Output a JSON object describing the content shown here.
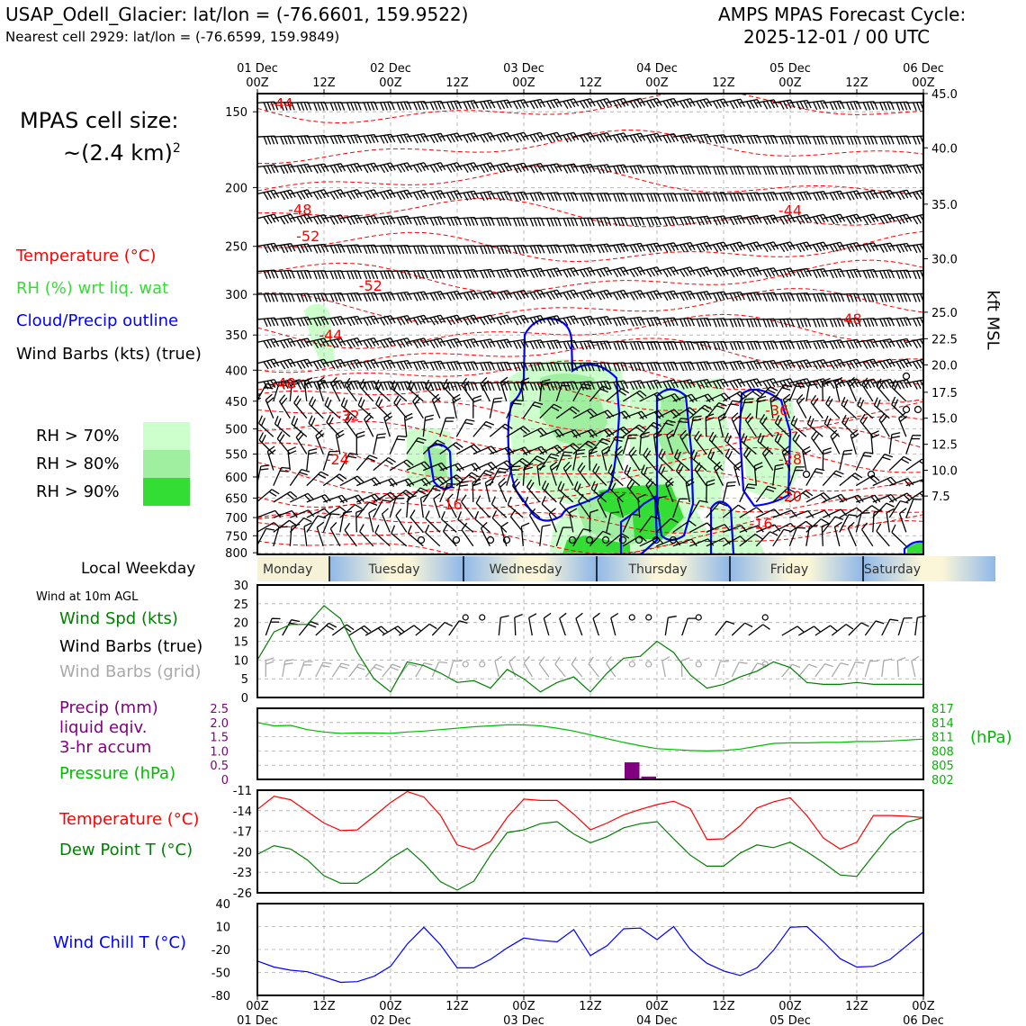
{
  "header": {
    "station_line": "USAP_Odell_Glacier: lat/lon = (-76.6601, 159.9522)",
    "nearest_line": "Nearest cell 2929: lat/lon = (-76.6599, 159.9849)",
    "cycle_line1": "AMPS MPAS Forecast Cycle:",
    "cycle_line2": "2025-12-01 / 00 UTC"
  },
  "colors": {
    "temperature": "#ff0000",
    "rh_label": "#33dd33",
    "cloud": "#0000ff",
    "wind_speed": "#008000",
    "dew_point": "#008000",
    "pressure": "#00bb00",
    "precip": "#800080",
    "wind_chill": "#0000ff",
    "grid_barbs": "#aaaaaa",
    "rh70": "#ccffcc",
    "rh80": "#a0eea0",
    "rh90": "#33dd33"
  },
  "time_axis": {
    "top_major": [
      "01 Dec\n00Z",
      "12Z",
      "02 Dec\n00Z",
      "12Z",
      "03 Dec\n00Z",
      "12Z",
      "04 Dec\n00Z",
      "12Z",
      "05 Dec\n00Z",
      "12Z",
      "06 Dec\n00Z"
    ],
    "bottom_hours": [
      "00Z",
      "12Z",
      "00Z",
      "12Z",
      "00Z",
      "12Z",
      "00Z",
      "12Z",
      "00Z",
      "12Z",
      "00Z"
    ],
    "bottom_dates": [
      "01 Dec",
      "",
      "02 Dec",
      "",
      "03 Dec",
      "",
      "04 Dec",
      "",
      "05 Dec",
      "",
      "06 Dec"
    ],
    "weekdays": [
      "Monday",
      "Tuesday",
      "Wednesday",
      "Thursday",
      "Friday",
      "Saturday"
    ],
    "weekday_label": "Local Weekday"
  },
  "cross_section": {
    "cell_size_label": "MPAS cell size:",
    "cell_size_value": "~(2.4 km)",
    "cell_size_exp": "2",
    "legend": {
      "temperature": "Temperature (°C)",
      "rh": "RH (%) wrt liq. wat",
      "cloud": "Cloud/Precip outline",
      "barbs": "Wind Barbs (kts) (true)",
      "rh70": "RH > 70%",
      "rh80": "RH > 80%",
      "rh90": "RH > 90%"
    },
    "pressure_ticks": [
      150,
      200,
      250,
      300,
      350,
      400,
      450,
      500,
      550,
      600,
      650,
      700,
      750,
      800
    ],
    "height_axis_label": "kft MSL",
    "height_ticks": [
      {
        "label": "45.0",
        "p": 140
      },
      {
        "label": "40.0",
        "p": 172
      },
      {
        "label": "35.0",
        "p": 213
      },
      {
        "label": "30.0",
        "p": 262
      },
      {
        "label": "25.0",
        "p": 321
      },
      {
        "label": "22.5",
        "p": 355
      },
      {
        "label": "20.0",
        "p": 392
      },
      {
        "label": "17.5",
        "p": 435
      },
      {
        "label": "15.0",
        "p": 480
      },
      {
        "label": "12.5",
        "p": 530
      },
      {
        "label": "10.0",
        "p": 585
      },
      {
        "label": "7.5",
        "p": 645
      }
    ],
    "temp_labels": [
      {
        "text": "-44",
        "t": 0.18,
        "p": 145
      },
      {
        "text": "-48",
        "t": 0.32,
        "p": 217
      },
      {
        "text": "-52",
        "t": 0.38,
        "p": 240
      },
      {
        "text": "-52",
        "t": 0.85,
        "p": 290
      },
      {
        "text": "-44",
        "t": 4.0,
        "p": 218
      },
      {
        "text": "-48",
        "t": 4.45,
        "p": 329
      },
      {
        "text": "-44",
        "t": 0.55,
        "p": 350
      },
      {
        "text": "-48",
        "t": 0.2,
        "p": 420
      },
      {
        "text": "-32",
        "t": 0.68,
        "p": 475
      },
      {
        "text": "-36",
        "t": 3.9,
        "p": 465
      },
      {
        "text": "-24",
        "t": 0.6,
        "p": 560
      },
      {
        "text": "-28",
        "t": 4.0,
        "p": 560
      },
      {
        "text": "-20",
        "t": 4.0,
        "p": 645
      },
      {
        "text": "-16",
        "t": 1.45,
        "p": 665
      },
      {
        "text": "-16",
        "t": 3.78,
        "p": 715
      }
    ]
  },
  "surface_wind": {
    "title": "Wind at 10m AGL",
    "label_speed": "Wind Spd (kts)",
    "label_barbs": "Wind Barbs (true)",
    "label_grid": "Wind Barbs (grid)",
    "yticks": [
      0,
      5,
      10,
      15,
      20,
      25,
      30
    ]
  },
  "precip_pressure": {
    "label_precip1": "Precip (mm)",
    "label_precip2": "liquid eqiv.",
    "label_precip3": "3-hr accum",
    "label_pressure": "Pressure (hPa)",
    "right_unit": "(hPa)",
    "precip_ticks": [
      "2.5",
      "2.0",
      "1.5",
      "1.0",
      "0.5",
      "0"
    ],
    "pressure_ticks": [
      "817",
      "814",
      "811",
      "808",
      "805",
      "802"
    ]
  },
  "temp_dew": {
    "label_temp": "Temperature (°C)",
    "label_dew": "Dew Point T (°C)",
    "yticks": [
      -11,
      -14,
      -17,
      -20,
      -23,
      -26
    ]
  },
  "wind_chill": {
    "label": "Wind Chill T (°C)",
    "yticks": [
      40,
      10,
      -20,
      -50,
      -80
    ]
  },
  "chart_data": [
    {
      "type": "line",
      "panel": "surface wind speed",
      "x_hours": [
        0,
        3,
        6,
        9,
        12,
        15,
        18,
        21,
        24,
        27,
        30,
        33,
        36,
        39,
        42,
        45,
        48,
        51,
        54,
        57,
        60,
        63,
        66,
        69,
        72,
        75,
        78,
        81,
        84,
        87,
        90,
        93,
        96,
        99,
        102,
        105,
        108,
        111,
        114,
        117,
        120
      ],
      "series": [
        {
          "name": "Wind Spd (kts)",
          "values": [
            10,
            17.5,
            19.5,
            19.5,
            24.5,
            21,
            12,
            5,
            1.5,
            9.5,
            8.5,
            6.5,
            4,
            4.5,
            2.5,
            7.5,
            5,
            1.5,
            4,
            5.5,
            1.5,
            6.5,
            10.5,
            11,
            15,
            12,
            6,
            2.5,
            3.5,
            5.5,
            7,
            9.5,
            8,
            4,
            3.5,
            3.5,
            4,
            3.5,
            3.5,
            3.5,
            3.5
          ]
        }
      ],
      "ylim": [
        0,
        30
      ]
    },
    {
      "type": "line",
      "panel": "surface pressure",
      "x_hours": [
        0,
        3,
        6,
        9,
        12,
        15,
        18,
        21,
        24,
        27,
        30,
        33,
        36,
        39,
        42,
        45,
        48,
        51,
        54,
        57,
        60,
        63,
        66,
        69,
        72,
        75,
        78,
        81,
        84,
        87,
        90,
        93,
        96,
        99,
        102,
        105,
        108,
        111,
        114,
        117,
        120
      ],
      "series": [
        {
          "name": "Pressure (hPa)",
          "values": [
            814,
            813.3,
            813.4,
            812.5,
            812,
            811.7,
            811.8,
            811.8,
            811.7,
            812.0,
            812.2,
            812.5,
            812.8,
            813.1,
            813.3,
            813.5,
            813.5,
            813.3,
            812.8,
            812.2,
            811.4,
            810.6,
            809.8,
            809.1,
            808.5,
            808.3,
            808.1,
            808.0,
            808.1,
            808.4,
            809.0,
            809.6,
            809.7,
            809.7,
            809.8,
            809.8,
            810.0,
            810.0,
            810.1,
            810.3,
            810.5
          ]
        }
      ],
      "ylim": [
        802,
        817
      ]
    },
    {
      "type": "bar",
      "panel": "precipitation 3-hr accum",
      "x_hours": [
        66,
        69
      ],
      "values": [
        0.6,
        0.1
      ],
      "ylim": [
        0,
        2.5
      ]
    },
    {
      "type": "line",
      "panel": "temperature and dew point",
      "x_hours": [
        0,
        3,
        6,
        9,
        12,
        15,
        18,
        21,
        24,
        27,
        30,
        33,
        36,
        39,
        42,
        45,
        48,
        51,
        54,
        57,
        60,
        63,
        66,
        69,
        72,
        75,
        78,
        81,
        84,
        87,
        90,
        93,
        96,
        99,
        102,
        105,
        108,
        111,
        114,
        117,
        120
      ],
      "series": [
        {
          "name": "Temperature (°C)",
          "values": [
            -13.8,
            -11.9,
            -12.4,
            -14.1,
            -15.8,
            -16.9,
            -16.8,
            -14.8,
            -12.8,
            -11.2,
            -12.0,
            -14.7,
            -19.0,
            -19.7,
            -18.5,
            -15.0,
            -12.3,
            -12.5,
            -12.5,
            -14.5,
            -16.8,
            -15.8,
            -14.6,
            -13.8,
            -13.1,
            -12.6,
            -13.7,
            -18.2,
            -18.1,
            -16.2,
            -13.6,
            -12.7,
            -12.1,
            -14.7,
            -18.0,
            -19.6,
            -18.6,
            -14.7,
            -14.7,
            -14.8,
            -15.0
          ]
        },
        {
          "name": "Dew Point T (°C)",
          "values": [
            -20.4,
            -19.1,
            -19.6,
            -21.2,
            -23.5,
            -24.6,
            -24.6,
            -23.0,
            -21.0,
            -19.5,
            -21.7,
            -24.4,
            -25.6,
            -24.3,
            -20.5,
            -17.2,
            -16.8,
            -15.9,
            -15.6,
            -17.4,
            -18.7,
            -17.8,
            -16.5,
            -15.9,
            -15.6,
            -18.1,
            -20.5,
            -22.1,
            -22.1,
            -20.2,
            -19.0,
            -19.4,
            -18.6,
            -20.0,
            -21.6,
            -23.4,
            -23.6,
            -20.5,
            -17.5,
            -15.7,
            -15.0
          ]
        }
      ],
      "ylim": [
        -26,
        -11
      ]
    },
    {
      "type": "line",
      "panel": "wind chill",
      "x_hours": [
        0,
        3,
        6,
        9,
        12,
        15,
        18,
        21,
        24,
        27,
        30,
        33,
        36,
        39,
        42,
        45,
        48,
        51,
        54,
        57,
        60,
        63,
        66,
        69,
        72,
        75,
        78,
        81,
        84,
        87,
        90,
        93,
        96,
        99,
        102,
        105,
        108,
        111,
        114,
        117,
        120
      ],
      "series": [
        {
          "name": "Wind Chill T (°C)",
          "values": [
            -35,
            -43,
            -47,
            -49,
            -56,
            -63,
            -62,
            -55,
            -42,
            -13,
            9,
            -14,
            -44,
            -44,
            -33,
            -18,
            -5,
            -8,
            -10,
            6,
            -28,
            -15,
            7,
            8,
            -7,
            10,
            -20,
            -38,
            -48,
            -54,
            -44,
            -21,
            9,
            10,
            -10,
            -32,
            -43,
            -42,
            -33,
            -15,
            3
          ]
        }
      ],
      "ylim": [
        -80,
        40
      ]
    }
  ]
}
